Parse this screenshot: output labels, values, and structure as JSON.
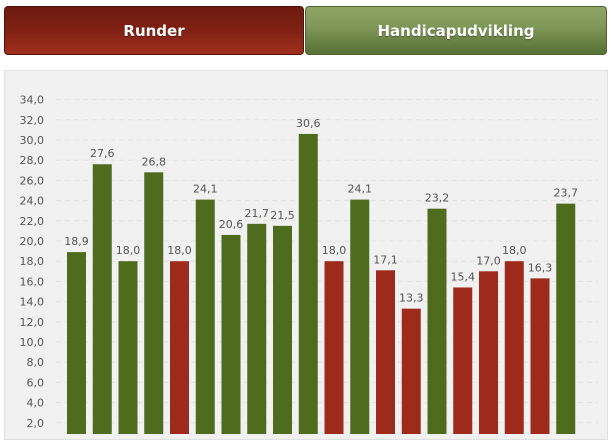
{
  "tabs": {
    "runder_label": "Runder",
    "handicap_label": "Handicapudvikling"
  },
  "colors": {
    "green": "#4e6b1e",
    "red": "#9e2a1c"
  },
  "chart_data": {
    "type": "bar",
    "title": "",
    "xlabel": "",
    "ylabel": "",
    "ylim": [
      0,
      34
    ],
    "yticks": [
      "2,0",
      "4,0",
      "6,0",
      "8,0",
      "10,0",
      "12,0",
      "14,0",
      "16,0",
      "18,0",
      "20,0",
      "22,0",
      "24,0",
      "26,0",
      "28,0",
      "30,0",
      "32,0",
      "34,0"
    ],
    "grid": true,
    "values": [
      18.9,
      27.6,
      18.0,
      26.8,
      18.0,
      24.1,
      20.6,
      21.7,
      21.5,
      30.6,
      18.0,
      24.1,
      17.1,
      13.3,
      23.2,
      15.4,
      17.0,
      18.0,
      16.3,
      23.7
    ],
    "labels": [
      "18,9",
      "27,6",
      "18,0",
      "26,8",
      "18,0",
      "24,1",
      "20,6",
      "21,7",
      "21,5",
      "30,6",
      "18,0",
      "24,1",
      "17,1",
      "13,3",
      "23,2",
      "15,4",
      "17,0",
      "18,0",
      "16,3",
      "23,7"
    ],
    "bar_colors": [
      "green",
      "green",
      "green",
      "green",
      "red",
      "green",
      "green",
      "green",
      "green",
      "green",
      "red",
      "green",
      "red",
      "red",
      "green",
      "red",
      "red",
      "red",
      "red",
      "green"
    ]
  }
}
